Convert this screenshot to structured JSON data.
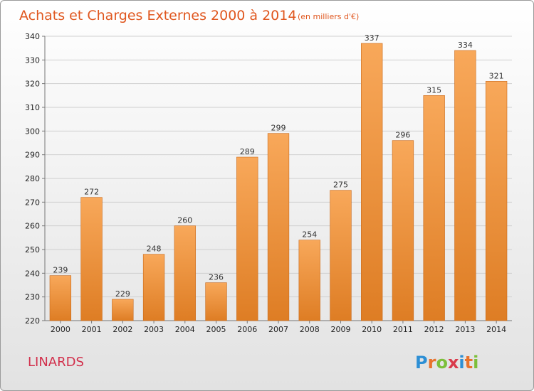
{
  "header": {
    "title": "Achats et Charges Externes 2000 à 2014",
    "unit": "(en milliers d'€)"
  },
  "footer": {
    "commune": "LINARDS",
    "logo": {
      "letters": [
        "P",
        "r",
        "o",
        "x",
        "i",
        "t",
        "i"
      ],
      "colors": [
        "#2d8fd5",
        "#e8722c",
        "#7cbf3a",
        "#d93a4b",
        "#2d8fd5",
        "#e8722c",
        "#7cbf3a"
      ]
    }
  },
  "colors": {
    "bar_light": "#f8a85a",
    "bar_dark": "#de7d24",
    "bar_edge": "#c96a1b",
    "title": "#e0571f"
  },
  "chart_data": {
    "type": "bar",
    "title": "Achats et Charges Externes 2000 à 2014",
    "subtitle": "(en milliers d'€)",
    "categories": [
      "2000",
      "2001",
      "2002",
      "2003",
      "2004",
      "2005",
      "2006",
      "2007",
      "2008",
      "2009",
      "2010",
      "2011",
      "2012",
      "2013",
      "2014"
    ],
    "values": [
      239,
      272,
      229,
      248,
      260,
      236,
      289,
      299,
      254,
      275,
      337,
      296,
      315,
      334,
      321
    ],
    "ylim": [
      220,
      340
    ],
    "yticks": [
      220,
      230,
      240,
      250,
      260,
      270,
      280,
      290,
      300,
      310,
      320,
      330,
      340
    ],
    "grid": true,
    "legend": "none"
  }
}
